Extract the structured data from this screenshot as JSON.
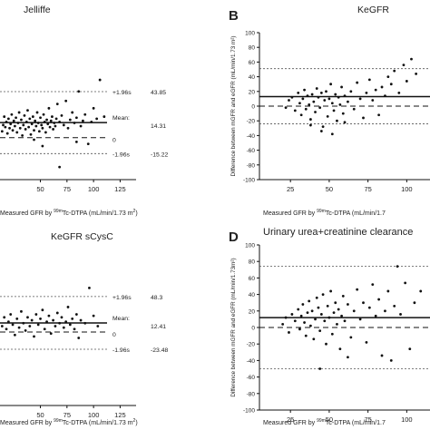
{
  "chart_data": [
    {
      "id": "A",
      "type": "scatter",
      "title": "Jelliffe",
      "panel_letter": "",
      "xlabel": "Measured GFR by ^99mTc-DTPA (mL/min/1.73m²)",
      "xlabel_parts": [
        "Measured GFR by ",
        "99m",
        "Tc-DTPA (mL/min/1.73 m",
        "2",
        ")"
      ],
      "ylabel": "",
      "x_ticks": [
        "50",
        "75",
        "100",
        "125"
      ],
      "y_ticks": [],
      "xlim": [
        12,
        140
      ],
      "ylim": [
        -40,
        100
      ],
      "lines": {
        "upper": {
          "label": "+1.96s",
          "value": 43.85,
          "value_label": "43.85"
        },
        "mean": {
          "label": "Mean",
          "value": 14.31,
          "value_label": "14.31"
        },
        "zero": {
          "label": "0",
          "value": 0,
          "value_label": ""
        },
        "lower": {
          "label": "-1.96s",
          "value": -15.22,
          "value_label": "-15.22"
        }
      },
      "points": [
        [
          14,
          6
        ],
        [
          15,
          12
        ],
        [
          16,
          20
        ],
        [
          17,
          10
        ],
        [
          18,
          15
        ],
        [
          19,
          4
        ],
        [
          20,
          18
        ],
        [
          21,
          9
        ],
        [
          22,
          13
        ],
        [
          23,
          22
        ],
        [
          24,
          7
        ],
        [
          25,
          16
        ],
        [
          26,
          11
        ],
        [
          27,
          19
        ],
        [
          28,
          5
        ],
        [
          29,
          14
        ],
        [
          30,
          24
        ],
        [
          31,
          9
        ],
        [
          32,
          17
        ],
        [
          33,
          2
        ],
        [
          34,
          12
        ],
        [
          35,
          21
        ],
        [
          36,
          8
        ],
        [
          37,
          15
        ],
        [
          38,
          26
        ],
        [
          39,
          10
        ],
        [
          40,
          18
        ],
        [
          41,
          3
        ],
        [
          42,
          13
        ],
        [
          43,
          20
        ],
        [
          44,
          7
        ],
        [
          45,
          16
        ],
        [
          46,
          11
        ],
        [
          47,
          24
        ],
        [
          48,
          14
        ],
        [
          49,
          6
        ],
        [
          50,
          19
        ],
        [
          51,
          12
        ],
        [
          52,
          9
        ],
        [
          53,
          22
        ],
        [
          54,
          15
        ],
        [
          55,
          5
        ],
        [
          56,
          17
        ],
        [
          57,
          13
        ],
        [
          58,
          28
        ],
        [
          59,
          10
        ],
        [
          60,
          16
        ],
        [
          61,
          20
        ],
        [
          62,
          8
        ],
        [
          63,
          14
        ],
        [
          64,
          11
        ],
        [
          65,
          18
        ],
        [
          66,
          32
        ],
        [
          68,
          15
        ],
        [
          70,
          21
        ],
        [
          72,
          12
        ],
        [
          74,
          35
        ],
        [
          76,
          9
        ],
        [
          78,
          17
        ],
        [
          80,
          24
        ],
        [
          82,
          14
        ],
        [
          84,
          19
        ],
        [
          86,
          44
        ],
        [
          88,
          11
        ],
        [
          90,
          16
        ],
        [
          92,
          22
        ],
        [
          95,
          -6
        ],
        [
          98,
          15
        ],
        [
          100,
          28
        ],
        [
          103,
          18
        ],
        [
          106,
          55
        ],
        [
          110,
          20
        ],
        [
          68,
          -28
        ],
        [
          44,
          -2
        ],
        [
          52,
          -8
        ],
        [
          84,
          -4
        ]
      ]
    },
    {
      "id": "B",
      "type": "scatter",
      "title": "KeGFR",
      "panel_letter": "B",
      "xlabel": "Measured GFR by ^99mTc-DTPA (mL/min/1.73m²)",
      "xlabel_parts": [
        "Measured GFR by ",
        "99m",
        "Tc-DTPA (mL/min/1.7",
        "",
        ""
      ],
      "ylabel": "Difference between mGFR and eGFR (mL/min/1.73 m²)",
      "x_ticks": [
        "25",
        "50",
        "75",
        "100"
      ],
      "y_ticks": [
        "100",
        "80",
        "60",
        "40",
        "20",
        "0",
        "-20",
        "-40",
        "-60",
        "-80",
        "-100"
      ],
      "xlim": [
        5,
        115
      ],
      "ylim": [
        -100,
        100
      ],
      "lines": {
        "upper": {
          "label": "",
          "value": 51,
          "value_label": ""
        },
        "mean": {
          "label": "",
          "value": 13,
          "value_label": ""
        },
        "zero": {
          "label": "",
          "value": 0,
          "value_label": ""
        },
        "lower": {
          "label": "",
          "value": -24,
          "value_label": ""
        }
      },
      "points": [
        [
          22,
          -2
        ],
        [
          24,
          8
        ],
        [
          26,
          12
        ],
        [
          28,
          -6
        ],
        [
          30,
          18
        ],
        [
          31,
          4
        ],
        [
          32,
          -12
        ],
        [
          33,
          10
        ],
        [
          34,
          22
        ],
        [
          35,
          -4
        ],
        [
          36,
          14
        ],
        [
          37,
          2
        ],
        [
          38,
          -18
        ],
        [
          39,
          16
        ],
        [
          40,
          6
        ],
        [
          41,
          -8
        ],
        [
          42,
          24
        ],
        [
          43,
          12
        ],
        [
          44,
          -2
        ],
        [
          45,
          18
        ],
        [
          46,
          -28
        ],
        [
          47,
          8
        ],
        [
          48,
          20
        ],
        [
          49,
          -14
        ],
        [
          50,
          10
        ],
        [
          51,
          30
        ],
        [
          52,
          4
        ],
        [
          53,
          -6
        ],
        [
          54,
          16
        ],
        [
          55,
          -20
        ],
        [
          56,
          12
        ],
        [
          57,
          2
        ],
        [
          58,
          26
        ],
        [
          59,
          -10
        ],
        [
          60,
          14
        ],
        [
          62,
          6
        ],
        [
          64,
          20
        ],
        [
          66,
          -4
        ],
        [
          68,
          32
        ],
        [
          70,
          10
        ],
        [
          72,
          -16
        ],
        [
          74,
          18
        ],
        [
          76,
          36
        ],
        [
          78,
          8
        ],
        [
          80,
          22
        ],
        [
          82,
          -12
        ],
        [
          84,
          26
        ],
        [
          86,
          14
        ],
        [
          88,
          40
        ],
        [
          90,
          30
        ],
        [
          92,
          48
        ],
        [
          95,
          18
        ],
        [
          98,
          56
        ],
        [
          100,
          34
        ],
        [
          103,
          64
        ],
        [
          106,
          44
        ],
        [
          45,
          -34
        ],
        [
          52,
          -38
        ],
        [
          60,
          -22
        ],
        [
          38,
          -26
        ]
      ]
    },
    {
      "id": "C",
      "type": "scatter",
      "title": "KeGFR sCysC",
      "panel_letter": "",
      "xlabel": "Measured GFR by ^99mTc-DTPA (mL/min/1.73m²)",
      "xlabel_parts": [
        "Measured GFR by ",
        "99m",
        "Tc-DTPA (mL/min/1.73 m",
        "2",
        ")"
      ],
      "ylabel": "",
      "x_ticks": [
        "50",
        "75",
        "100",
        "125"
      ],
      "y_ticks": [],
      "xlim": [
        12,
        140
      ],
      "ylim": [
        -100,
        100
      ],
      "lines": {
        "upper": {
          "label": "+1.96s",
          "value": 48.3,
          "value_label": "48.3"
        },
        "mean": {
          "label": "Mean",
          "value": 12.41,
          "value_label": "12.41"
        },
        "zero": {
          "label": "0",
          "value": 0,
          "value_label": ""
        },
        "lower": {
          "label": "-1.96s",
          "value": -23.48,
          "value_label": "-23.48"
        }
      },
      "points": [
        [
          14,
          8
        ],
        [
          16,
          20
        ],
        [
          18,
          4
        ],
        [
          20,
          14
        ],
        [
          22,
          24
        ],
        [
          24,
          10
        ],
        [
          26,
          -4
        ],
        [
          28,
          18
        ],
        [
          30,
          6
        ],
        [
          32,
          28
        ],
        [
          34,
          12
        ],
        [
          36,
          2
        ],
        [
          38,
          20
        ],
        [
          40,
          8
        ],
        [
          42,
          16
        ],
        [
          44,
          -6
        ],
        [
          46,
          24
        ],
        [
          48,
          10
        ],
        [
          50,
          18
        ],
        [
          52,
          30
        ],
        [
          54,
          4
        ],
        [
          56,
          14
        ],
        [
          58,
          22
        ],
        [
          60,
          -2
        ],
        [
          62,
          16
        ],
        [
          64,
          8
        ],
        [
          66,
          26
        ],
        [
          68,
          12
        ],
        [
          70,
          20
        ],
        [
          72,
          6
        ],
        [
          74,
          14
        ],
        [
          76,
          34
        ],
        [
          78,
          10
        ],
        [
          80,
          18
        ],
        [
          82,
          4
        ],
        [
          84,
          24
        ],
        [
          86,
          -8
        ],
        [
          88,
          16
        ],
        [
          92,
          12
        ],
        [
          96,
          60
        ],
        [
          100,
          22
        ],
        [
          104,
          8
        ]
      ]
    },
    {
      "id": "D",
      "type": "scatter",
      "title": "Urinary urea+creatinine clearance",
      "panel_letter": "D",
      "xlabel": "Measured GFR by ^99mTc-DTPA (mL/min/1.73m²)",
      "xlabel_parts": [
        "Measured GFR by ",
        "99m",
        "Tc-DTPA (mL/min/1.7",
        "",
        ""
      ],
      "ylabel": "Difference between mGFR and eGFR (mL/min/1.73m²)",
      "x_ticks": [
        "25",
        "50",
        "75",
        "100"
      ],
      "y_ticks": [
        "100",
        "80",
        "60",
        "40",
        "20",
        "0",
        "-20",
        "-40",
        "-60",
        "-80",
        "-100"
      ],
      "xlim": [
        5,
        115
      ],
      "ylim": [
        -100,
        100
      ],
      "lines": {
        "upper": {
          "label": "",
          "value": 74,
          "value_label": ""
        },
        "mean": {
          "label": "",
          "value": 12,
          "value_label": ""
        },
        "zero": {
          "label": "",
          "value": 0,
          "value_label": ""
        },
        "lower": {
          "label": "",
          "value": -50,
          "value_label": ""
        }
      },
      "points": [
        [
          20,
          4
        ],
        [
          22,
          12
        ],
        [
          24,
          -6
        ],
        [
          26,
          16
        ],
        [
          28,
          8
        ],
        [
          30,
          22
        ],
        [
          31,
          -2
        ],
        [
          32,
          14
        ],
        [
          33,
          28
        ],
        [
          34,
          6
        ],
        [
          35,
          -10
        ],
        [
          36,
          18
        ],
        [
          37,
          32
        ],
        [
          38,
          2
        ],
        [
          39,
          20
        ],
        [
          40,
          -14
        ],
        [
          41,
          10
        ],
        [
          42,
          36
        ],
        [
          43,
          24
        ],
        [
          44,
          -4
        ],
        [
          45,
          16
        ],
        [
          46,
          40
        ],
        [
          47,
          8
        ],
        [
          48,
          -20
        ],
        [
          49,
          26
        ],
        [
          50,
          12
        ],
        [
          51,
          44
        ],
        [
          52,
          -8
        ],
        [
          53,
          18
        ],
        [
          54,
          30
        ],
        [
          55,
          4
        ],
        [
          56,
          22
        ],
        [
          57,
          -26
        ],
        [
          58,
          14
        ],
        [
          59,
          38
        ],
        [
          60,
          8
        ],
        [
          62,
          28
        ],
        [
          64,
          -12
        ],
        [
          66,
          20
        ],
        [
          68,
          46
        ],
        [
          70,
          10
        ],
        [
          72,
          30
        ],
        [
          74,
          -18
        ],
        [
          76,
          24
        ],
        [
          78,
          52
        ],
        [
          80,
          14
        ],
        [
          82,
          34
        ],
        [
          84,
          -34
        ],
        [
          86,
          20
        ],
        [
          88,
          44
        ],
        [
          90,
          -40
        ],
        [
          92,
          26
        ],
        [
          94,
          74
        ],
        [
          96,
          16
        ],
        [
          99,
          54
        ],
        [
          102,
          -26
        ],
        [
          105,
          30
        ],
        [
          109,
          44
        ],
        [
          44,
          -50
        ],
        [
          62,
          -36
        ]
      ]
    }
  ]
}
